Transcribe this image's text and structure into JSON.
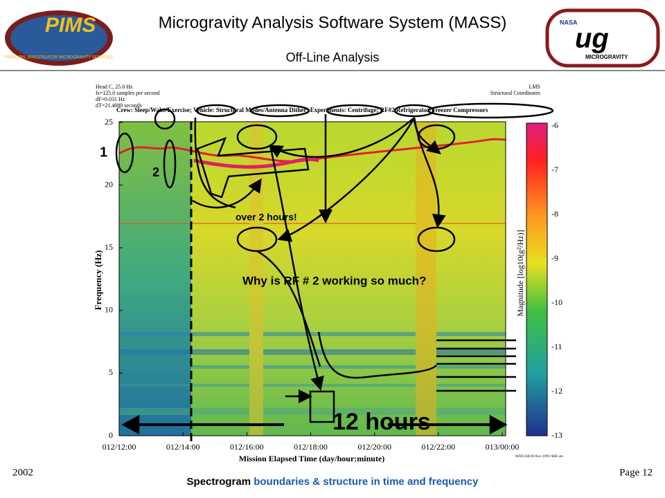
{
  "header": {
    "title": "Microgravity Analysis Software System (MASS)",
    "subtitle": "Off-Line Analysis",
    "left_logo": "PIMS",
    "left_logo_caption": "PRINCIPAL INVESTIGATOR MICROGRAVITY SERVICES",
    "right_logo": "NASA",
    "right_logo_caption": "MICROGRAVITY"
  },
  "figure": {
    "info_left": [
      "Head C, 25.0 Hz",
      "fs=125.0 samples per second",
      "dF=0.031 Hz",
      "dT=21.4080 seconds"
    ],
    "info_right": [
      "LMS",
      "Structural Coordinates"
    ],
    "legend_line": "Crew: Sleep/Wake/Exercise; Vehicle: Structural Modes/Antenna Dither; Experiments: Centrifuge; RF#2 Refrigerator/Freezer Compressors",
    "y_label": "Frequency (Hz)",
    "x_label": "Mission Elapsed Time (day/hour:minute)",
    "y_ticks": [
      "0",
      "5",
      "10",
      "15",
      "20",
      "25"
    ],
    "x_ticks": [
      "012/12:00",
      "012/14:00",
      "012/16:00",
      "012/18:00",
      "012/20:00",
      "012/22:00",
      "013/00:00"
    ],
    "colorbar_ticks": [
      "-6",
      "-7",
      "-8",
      "-9",
      "-10",
      "-11",
      "-12",
      "-13"
    ],
    "colorbar_label": "Magnitude [log10(g²/Hz)]",
    "stamp": "MATLAB:09-Nov-1999; 6885 am",
    "annotations": [
      "1",
      "2",
      "over 2 hours!",
      "Why is RF # 2 working so much?",
      "12 hours"
    ]
  },
  "footer": {
    "year": "2002",
    "page": "Page 12",
    "caption_part1": "Spectrogram ",
    "caption_part2": "boundaries & structure in time and frequency"
  }
}
